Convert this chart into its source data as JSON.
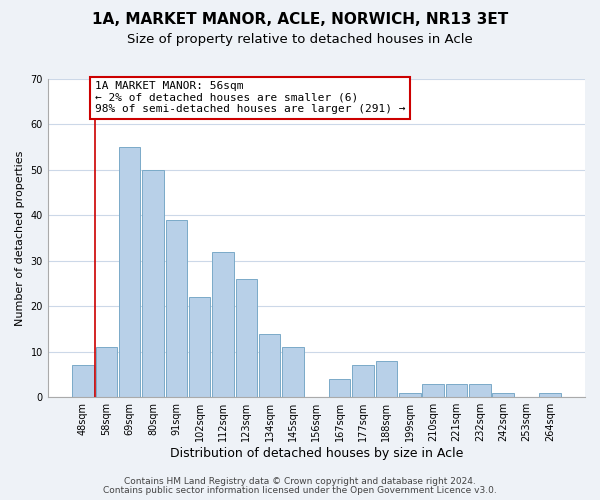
{
  "title": "1A, MARKET MANOR, ACLE, NORWICH, NR13 3ET",
  "subtitle": "Size of property relative to detached houses in Acle",
  "xlabel": "Distribution of detached houses by size in Acle",
  "ylabel": "Number of detached properties",
  "bar_labels": [
    "48sqm",
    "58sqm",
    "69sqm",
    "80sqm",
    "91sqm",
    "102sqm",
    "112sqm",
    "123sqm",
    "134sqm",
    "145sqm",
    "156sqm",
    "167sqm",
    "177sqm",
    "188sqm",
    "199sqm",
    "210sqm",
    "221sqm",
    "232sqm",
    "242sqm",
    "253sqm",
    "264sqm"
  ],
  "bar_values": [
    7,
    11,
    55,
    50,
    39,
    22,
    32,
    26,
    14,
    11,
    0,
    4,
    7,
    8,
    1,
    3,
    3,
    3,
    1,
    0,
    1
  ],
  "bar_color": "#b8d0e8",
  "bar_edge_color": "#7aaac8",
  "highlight_line_color": "#cc0000",
  "annotation_text": "1A MARKET MANOR: 56sqm\n← 2% of detached houses are smaller (6)\n98% of semi-detached houses are larger (291) →",
  "annotation_box_color": "#ffffff",
  "annotation_box_edge": "#cc0000",
  "ylim": [
    0,
    70
  ],
  "yticks": [
    0,
    10,
    20,
    30,
    40,
    50,
    60,
    70
  ],
  "footer_line1": "Contains HM Land Registry data © Crown copyright and database right 2024.",
  "footer_line2": "Contains public sector information licensed under the Open Government Licence v3.0.",
  "background_color": "#eef2f7",
  "plot_background": "#ffffff",
  "grid_color": "#ccd8e8",
  "title_fontsize": 11,
  "subtitle_fontsize": 9.5,
  "xlabel_fontsize": 9,
  "ylabel_fontsize": 8,
  "tick_fontsize": 7,
  "annotation_fontsize": 8,
  "footer_fontsize": 6.5
}
